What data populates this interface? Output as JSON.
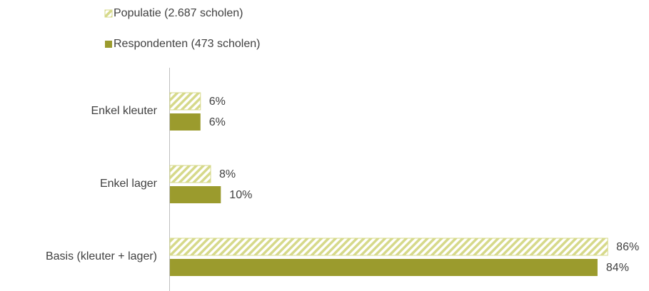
{
  "chart_data": {
    "type": "hbar",
    "categories": [
      "Enkel kleuter",
      "Enkel lager",
      "Basis (kleuter + lager)"
    ],
    "series": [
      {
        "name": "Populatie (2.687 scholen)",
        "color": "#d6d98a",
        "pattern": "hatch",
        "values": [
          6,
          8,
          86
        ],
        "value_labels": [
          "6%",
          "8%",
          "86%"
        ]
      },
      {
        "name": "Respondenten (473 scholen)",
        "color": "#9b9b2d",
        "pattern": "solid",
        "values": [
          6,
          10,
          84
        ],
        "value_labels": [
          "6%",
          "10%",
          "84%"
        ]
      }
    ]
  }
}
